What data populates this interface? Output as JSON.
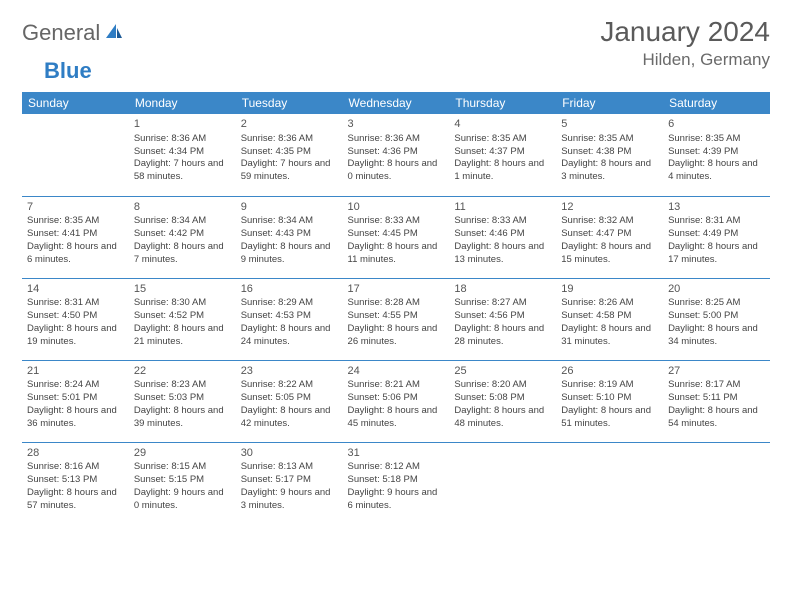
{
  "brand": {
    "part1": "General",
    "part2": "Blue"
  },
  "title": "January 2024",
  "location": "Hilden, Germany",
  "colors": {
    "header_bg": "#3b87c8",
    "header_text": "#ffffff",
    "accent": "#2f7dc4",
    "text": "#424242"
  },
  "weekdays": [
    "Sunday",
    "Monday",
    "Tuesday",
    "Wednesday",
    "Thursday",
    "Friday",
    "Saturday"
  ],
  "weeks": [
    [
      {
        "n": "",
        "sr": "",
        "ss": "",
        "dl": ""
      },
      {
        "n": "1",
        "sr": "Sunrise: 8:36 AM",
        "ss": "Sunset: 4:34 PM",
        "dl": "Daylight: 7 hours and 58 minutes."
      },
      {
        "n": "2",
        "sr": "Sunrise: 8:36 AM",
        "ss": "Sunset: 4:35 PM",
        "dl": "Daylight: 7 hours and 59 minutes."
      },
      {
        "n": "3",
        "sr": "Sunrise: 8:36 AM",
        "ss": "Sunset: 4:36 PM",
        "dl": "Daylight: 8 hours and 0 minutes."
      },
      {
        "n": "4",
        "sr": "Sunrise: 8:35 AM",
        "ss": "Sunset: 4:37 PM",
        "dl": "Daylight: 8 hours and 1 minute."
      },
      {
        "n": "5",
        "sr": "Sunrise: 8:35 AM",
        "ss": "Sunset: 4:38 PM",
        "dl": "Daylight: 8 hours and 3 minutes."
      },
      {
        "n": "6",
        "sr": "Sunrise: 8:35 AM",
        "ss": "Sunset: 4:39 PM",
        "dl": "Daylight: 8 hours and 4 minutes."
      }
    ],
    [
      {
        "n": "7",
        "sr": "Sunrise: 8:35 AM",
        "ss": "Sunset: 4:41 PM",
        "dl": "Daylight: 8 hours and 6 minutes."
      },
      {
        "n": "8",
        "sr": "Sunrise: 8:34 AM",
        "ss": "Sunset: 4:42 PM",
        "dl": "Daylight: 8 hours and 7 minutes."
      },
      {
        "n": "9",
        "sr": "Sunrise: 8:34 AM",
        "ss": "Sunset: 4:43 PM",
        "dl": "Daylight: 8 hours and 9 minutes."
      },
      {
        "n": "10",
        "sr": "Sunrise: 8:33 AM",
        "ss": "Sunset: 4:45 PM",
        "dl": "Daylight: 8 hours and 11 minutes."
      },
      {
        "n": "11",
        "sr": "Sunrise: 8:33 AM",
        "ss": "Sunset: 4:46 PM",
        "dl": "Daylight: 8 hours and 13 minutes."
      },
      {
        "n": "12",
        "sr": "Sunrise: 8:32 AM",
        "ss": "Sunset: 4:47 PM",
        "dl": "Daylight: 8 hours and 15 minutes."
      },
      {
        "n": "13",
        "sr": "Sunrise: 8:31 AM",
        "ss": "Sunset: 4:49 PM",
        "dl": "Daylight: 8 hours and 17 minutes."
      }
    ],
    [
      {
        "n": "14",
        "sr": "Sunrise: 8:31 AM",
        "ss": "Sunset: 4:50 PM",
        "dl": "Daylight: 8 hours and 19 minutes."
      },
      {
        "n": "15",
        "sr": "Sunrise: 8:30 AM",
        "ss": "Sunset: 4:52 PM",
        "dl": "Daylight: 8 hours and 21 minutes."
      },
      {
        "n": "16",
        "sr": "Sunrise: 8:29 AM",
        "ss": "Sunset: 4:53 PM",
        "dl": "Daylight: 8 hours and 24 minutes."
      },
      {
        "n": "17",
        "sr": "Sunrise: 8:28 AM",
        "ss": "Sunset: 4:55 PM",
        "dl": "Daylight: 8 hours and 26 minutes."
      },
      {
        "n": "18",
        "sr": "Sunrise: 8:27 AM",
        "ss": "Sunset: 4:56 PM",
        "dl": "Daylight: 8 hours and 28 minutes."
      },
      {
        "n": "19",
        "sr": "Sunrise: 8:26 AM",
        "ss": "Sunset: 4:58 PM",
        "dl": "Daylight: 8 hours and 31 minutes."
      },
      {
        "n": "20",
        "sr": "Sunrise: 8:25 AM",
        "ss": "Sunset: 5:00 PM",
        "dl": "Daylight: 8 hours and 34 minutes."
      }
    ],
    [
      {
        "n": "21",
        "sr": "Sunrise: 8:24 AM",
        "ss": "Sunset: 5:01 PM",
        "dl": "Daylight: 8 hours and 36 minutes."
      },
      {
        "n": "22",
        "sr": "Sunrise: 8:23 AM",
        "ss": "Sunset: 5:03 PM",
        "dl": "Daylight: 8 hours and 39 minutes."
      },
      {
        "n": "23",
        "sr": "Sunrise: 8:22 AM",
        "ss": "Sunset: 5:05 PM",
        "dl": "Daylight: 8 hours and 42 minutes."
      },
      {
        "n": "24",
        "sr": "Sunrise: 8:21 AM",
        "ss": "Sunset: 5:06 PM",
        "dl": "Daylight: 8 hours and 45 minutes."
      },
      {
        "n": "25",
        "sr": "Sunrise: 8:20 AM",
        "ss": "Sunset: 5:08 PM",
        "dl": "Daylight: 8 hours and 48 minutes."
      },
      {
        "n": "26",
        "sr": "Sunrise: 8:19 AM",
        "ss": "Sunset: 5:10 PM",
        "dl": "Daylight: 8 hours and 51 minutes."
      },
      {
        "n": "27",
        "sr": "Sunrise: 8:17 AM",
        "ss": "Sunset: 5:11 PM",
        "dl": "Daylight: 8 hours and 54 minutes."
      }
    ],
    [
      {
        "n": "28",
        "sr": "Sunrise: 8:16 AM",
        "ss": "Sunset: 5:13 PM",
        "dl": "Daylight: 8 hours and 57 minutes."
      },
      {
        "n": "29",
        "sr": "Sunrise: 8:15 AM",
        "ss": "Sunset: 5:15 PM",
        "dl": "Daylight: 9 hours and 0 minutes."
      },
      {
        "n": "30",
        "sr": "Sunrise: 8:13 AM",
        "ss": "Sunset: 5:17 PM",
        "dl": "Daylight: 9 hours and 3 minutes."
      },
      {
        "n": "31",
        "sr": "Sunrise: 8:12 AM",
        "ss": "Sunset: 5:18 PM",
        "dl": "Daylight: 9 hours and 6 minutes."
      },
      {
        "n": "",
        "sr": "",
        "ss": "",
        "dl": ""
      },
      {
        "n": "",
        "sr": "",
        "ss": "",
        "dl": ""
      },
      {
        "n": "",
        "sr": "",
        "ss": "",
        "dl": ""
      }
    ]
  ]
}
